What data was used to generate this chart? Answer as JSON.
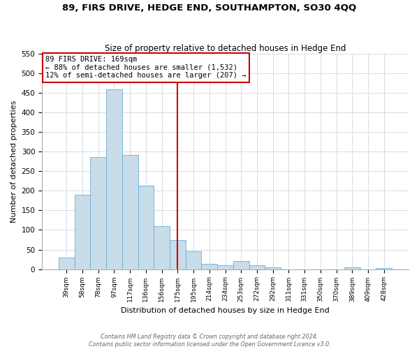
{
  "title": "89, FIRS DRIVE, HEDGE END, SOUTHAMPTON, SO30 4QQ",
  "subtitle": "Size of property relative to detached houses in Hedge End",
  "xlabel": "Distribution of detached houses by size in Hedge End",
  "ylabel": "Number of detached properties",
  "bar_labels": [
    "39sqm",
    "58sqm",
    "78sqm",
    "97sqm",
    "117sqm",
    "136sqm",
    "156sqm",
    "175sqm",
    "195sqm",
    "214sqm",
    "234sqm",
    "253sqm",
    "272sqm",
    "292sqm",
    "311sqm",
    "331sqm",
    "350sqm",
    "370sqm",
    "389sqm",
    "409sqm",
    "428sqm"
  ],
  "bar_values": [
    30,
    190,
    287,
    460,
    291,
    213,
    110,
    74,
    46,
    13,
    10,
    21,
    10,
    5,
    0,
    0,
    0,
    0,
    5,
    0,
    3
  ],
  "bar_color": "#c9dcea",
  "bar_edge_color": "#6aaed6",
  "vline_x_index": 7,
  "vline_color": "#cc0000",
  "annotation_title": "89 FIRS DRIVE: 169sqm",
  "annotation_line1": "← 88% of detached houses are smaller (1,532)",
  "annotation_line2": "12% of semi-detached houses are larger (207) →",
  "annotation_box_color": "#ffffff",
  "annotation_box_edge": "#cc0000",
  "ylim": [
    0,
    550
  ],
  "yticks": [
    0,
    50,
    100,
    150,
    200,
    250,
    300,
    350,
    400,
    450,
    500,
    550
  ],
  "footer1": "Contains HM Land Registry data © Crown copyright and database right 2024.",
  "footer2": "Contains public sector information licensed under the Open Government Licence v3.0.",
  "grid_color": "#d0d8e0",
  "background_color": "#ffffff"
}
